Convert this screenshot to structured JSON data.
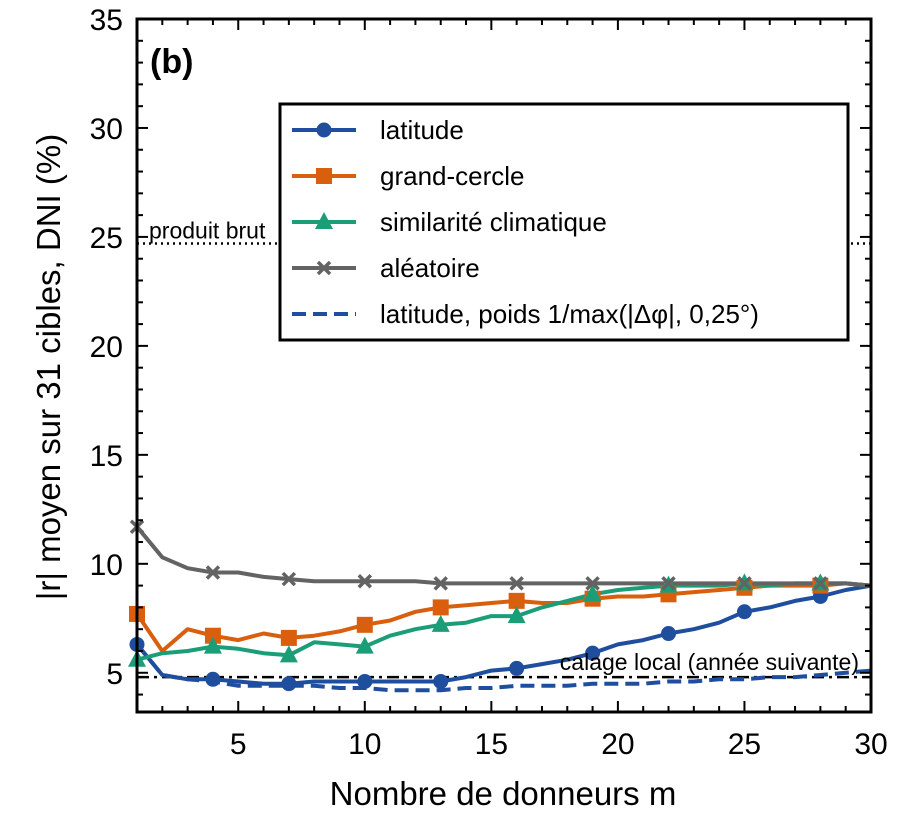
{
  "chart_data": {
    "type": "line",
    "panel_label": "(b)",
    "xlabel": "Nombre de donneurs m",
    "ylabel": "|r| moyen sur 31 cibles, DNI (%)",
    "xlim": [
      1,
      30
    ],
    "ylim": [
      3.2,
      35
    ],
    "x_ticks": [
      5,
      10,
      15,
      20,
      25,
      30
    ],
    "y_ticks": [
      5,
      10,
      15,
      20,
      25,
      30,
      35
    ],
    "x": [
      1,
      2,
      3,
      4,
      5,
      6,
      7,
      8,
      9,
      10,
      11,
      12,
      13,
      14,
      15,
      16,
      17,
      18,
      19,
      20,
      21,
      22,
      23,
      24,
      25,
      26,
      27,
      28,
      29,
      30
    ],
    "marker_every": [
      1,
      4,
      7,
      10,
      13,
      16,
      19,
      22,
      25,
      28
    ],
    "series": [
      {
        "name": "latitude",
        "color": "#1f4e9e",
        "linestyle": "solid",
        "marker": "circle",
        "values": [
          6.3,
          4.9,
          4.7,
          4.7,
          4.6,
          4.5,
          4.5,
          4.6,
          4.6,
          4.6,
          4.6,
          4.6,
          4.6,
          4.8,
          5.1,
          5.2,
          5.4,
          5.6,
          5.9,
          6.3,
          6.5,
          6.8,
          7.0,
          7.3,
          7.8,
          8.0,
          8.3,
          8.5,
          8.8,
          9.0
        ]
      },
      {
        "name": "grand-cercle",
        "color": "#d95f0e",
        "linestyle": "solid",
        "marker": "square",
        "values": [
          7.7,
          6.0,
          7.0,
          6.7,
          6.5,
          6.8,
          6.6,
          6.7,
          6.9,
          7.2,
          7.4,
          7.8,
          8.0,
          8.1,
          8.2,
          8.3,
          8.2,
          8.2,
          8.4,
          8.5,
          8.5,
          8.6,
          8.7,
          8.8,
          8.9,
          9.0,
          9.0,
          9.0,
          9.1,
          9.0
        ]
      },
      {
        "name": "similarité climatique",
        "color": "#1b9e77",
        "linestyle": "solid",
        "marker": "triangle",
        "values": [
          5.6,
          5.9,
          6.0,
          6.2,
          6.1,
          5.9,
          5.8,
          6.4,
          6.3,
          6.2,
          6.7,
          7.0,
          7.2,
          7.3,
          7.6,
          7.6,
          8.0,
          8.3,
          8.6,
          8.8,
          8.9,
          9.0,
          9.0,
          9.0,
          9.1,
          9.0,
          9.1,
          9.1,
          9.1,
          9.0
        ]
      },
      {
        "name": "aléatoire",
        "color": "#636363",
        "linestyle": "solid",
        "marker": "x",
        "values": [
          11.7,
          10.3,
          9.8,
          9.6,
          9.6,
          9.4,
          9.3,
          9.2,
          9.2,
          9.2,
          9.2,
          9.2,
          9.1,
          9.1,
          9.1,
          9.1,
          9.1,
          9.1,
          9.1,
          9.1,
          9.1,
          9.1,
          9.1,
          9.1,
          9.1,
          9.1,
          9.1,
          9.1,
          9.1,
          9.0
        ]
      },
      {
        "name": "latitude, poids 1/max(|Δφ|, 0,25°)",
        "color": "#1f4e9e",
        "linestyle": "dashed",
        "marker": "none",
        "values": [
          6.3,
          4.9,
          4.7,
          4.6,
          4.4,
          4.4,
          4.4,
          4.4,
          4.3,
          4.3,
          4.2,
          4.2,
          4.2,
          4.3,
          4.3,
          4.4,
          4.4,
          4.4,
          4.5,
          4.5,
          4.5,
          4.6,
          4.6,
          4.7,
          4.7,
          4.8,
          4.8,
          4.9,
          5.0,
          5.1
        ]
      }
    ],
    "reference_lines": [
      {
        "label": "produit brut",
        "y": 24.7,
        "style": "dotted",
        "color": "#000000"
      },
      {
        "label": "calage local (année suivante)",
        "y": 4.8,
        "style": "dashdot",
        "color": "#000000"
      }
    ],
    "legend_position": "upper-right",
    "grid": false
  }
}
